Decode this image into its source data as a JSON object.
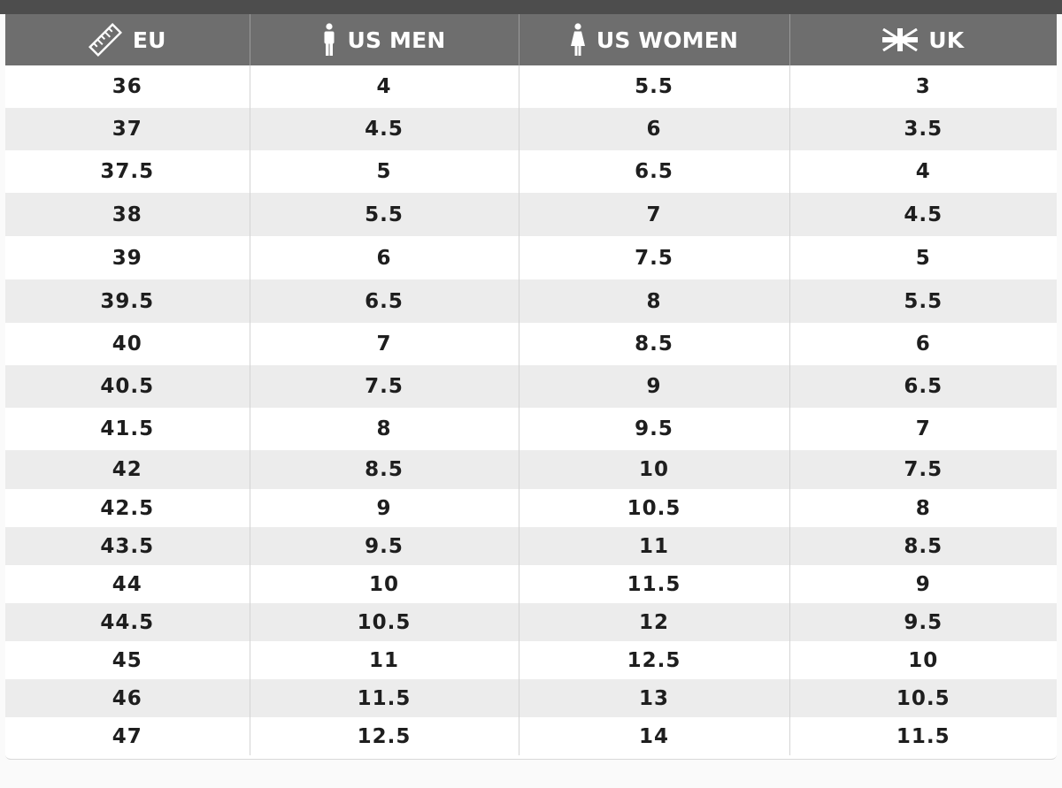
{
  "table": {
    "headers": {
      "eu": {
        "label": "EU",
        "icon": "ruler-icon"
      },
      "us_men": {
        "label": "US MEN",
        "icon": "man-icon"
      },
      "us_women": {
        "label": "US WOMEN",
        "icon": "woman-icon"
      },
      "uk": {
        "label": "UK",
        "icon": "uk-flag-icon"
      }
    },
    "rows": [
      [
        "36",
        "4",
        "5.5",
        "3"
      ],
      [
        "37",
        "4.5",
        "6",
        "3.5"
      ],
      [
        "37.5",
        "5",
        "6.5",
        "4"
      ],
      [
        "38",
        "5.5",
        "7",
        "4.5"
      ],
      [
        "39",
        "6",
        "7.5",
        "5"
      ],
      [
        "39.5",
        "6.5",
        "8",
        "5.5"
      ],
      [
        "40",
        "7",
        "8.5",
        "6"
      ],
      [
        "40.5",
        "7.5",
        "9",
        "6.5"
      ],
      [
        "41.5",
        "8",
        "9.5",
        "7"
      ],
      [
        "42",
        "8.5",
        "10",
        "7.5"
      ],
      [
        "42.5",
        "9",
        "10.5",
        "8"
      ],
      [
        "43.5",
        "9.5",
        "11",
        "8.5"
      ],
      [
        "44",
        "10",
        "11.5",
        "9"
      ],
      [
        "44.5",
        "10.5",
        "12",
        "9.5"
      ],
      [
        "45",
        "11",
        "12.5",
        "10"
      ],
      [
        "46",
        "11.5",
        "13",
        "10.5"
      ],
      [
        "47",
        "12.5",
        "14",
        "11.5"
      ]
    ]
  },
  "colors": {
    "header_bg": "#6e6e6e",
    "top_bar": "#4d4d4d",
    "row_alt": "#ececec",
    "text": "#1e1e1e"
  }
}
